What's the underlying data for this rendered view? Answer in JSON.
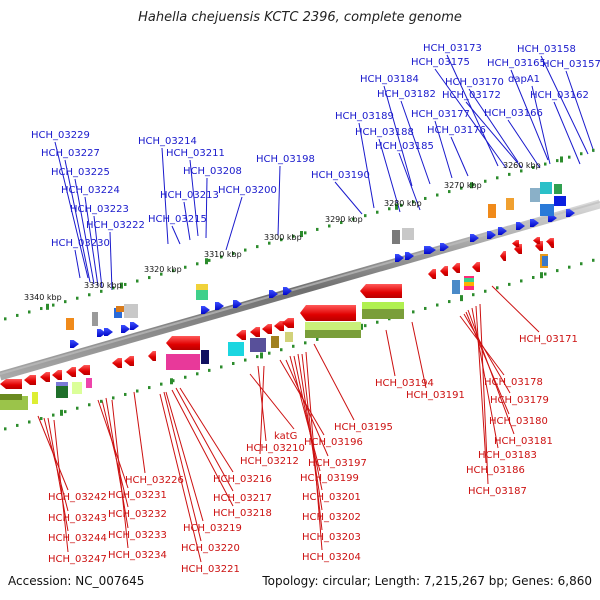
{
  "title": "Hahella chejuensis KCTC 2396, complete genome",
  "footer": {
    "accession": "Accession: NC_007645",
    "summary": "Topology: circular; Length: 7,215,267 bp; Genes: 6,860"
  },
  "kbp_ticks": [
    "3340 kbp",
    "3330 kbp",
    "3320 kbp",
    "3310 kbp",
    "3300 kbp",
    "3290 kbp",
    "3280 kbp",
    "3270 kbp",
    "3260 kbp"
  ],
  "top_labels": [
    "HCH_03229",
    "HCH_03227",
    "HCH_03225",
    "HCH_03224",
    "HCH_03223",
    "HCH_03222",
    "HCH_03230",
    "HCH_03214",
    "HCH_03211",
    "HCH_03208",
    "HCH_03213",
    "HCH_03215",
    "HCH_03200",
    "HCH_03198",
    "HCH_03190",
    "HCH_03189",
    "HCH_03188",
    "HCH_03185",
    "HCH_03184",
    "HCH_03182",
    "HCH_03177",
    "HCH_03176",
    "HCH_03173",
    "HCH_03175",
    "HCH_03170",
    "HCH_03172",
    "HCH_03165",
    "dapA1",
    "HCH_03166",
    "HCH_03162",
    "HCH_03158",
    "HCH_03157"
  ],
  "bottom_labels": [
    "HCH_03242",
    "HCH_03243",
    "HCH_03244",
    "HCH_03247",
    "HCH_03231",
    "HCH_03232",
    "HCH_03233",
    "HCH_03234",
    "HCH_03226",
    "HCH_03216",
    "HCH_03217",
    "HCH_03218",
    "HCH_03219",
    "HCH_03220",
    "HCH_03221",
    "katG",
    "HCH_03210",
    "HCH_03212",
    "HCH_03196",
    "HCH_03197",
    "HCH_03199",
    "HCH_03201",
    "HCH_03202",
    "HCH_03203",
    "HCH_03204",
    "HCH_03195",
    "HCH_03194",
    "HCH_03191",
    "HCH_03178",
    "HCH_03179",
    "HCH_03180",
    "HCH_03181",
    "HCH_03183",
    "HCH_03186",
    "HCH_03187",
    "HCH_03171"
  ],
  "colors": {
    "top_label": "#1a1acc",
    "bottom_label": "#cc1111",
    "forward_gene": "#0b1fe0",
    "reverse_gene": "#e60b0b",
    "genome": "#8c8c8c",
    "tick": "#2c8c2c"
  }
}
